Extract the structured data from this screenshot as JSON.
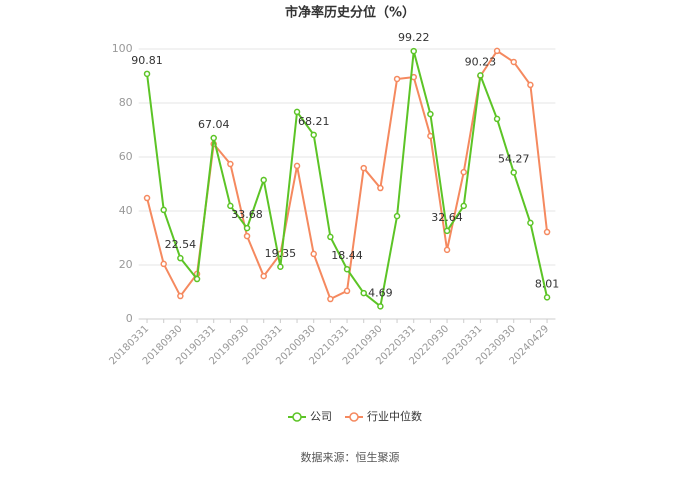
{
  "chart_data": {
    "type": "line",
    "title": "市净率历史分位（%）",
    "categories": [
      "20180331",
      null,
      "20180930",
      null,
      "20190331",
      null,
      "20190930",
      null,
      "20200331",
      null,
      "20200930",
      null,
      "20210331",
      null,
      "20210930",
      null,
      "20220331",
      null,
      "20220930",
      null,
      "20230331",
      null,
      "20230930",
      null,
      "20240429"
    ],
    "series": [
      {
        "name": "公司",
        "color": "#5cc426",
        "values": [
          90.81,
          40.4,
          22.54,
          14.8,
          67.04,
          41.9,
          33.68,
          51.5,
          19.35,
          76.7,
          68.21,
          30.4,
          18.44,
          9.6,
          4.69,
          38.1,
          99.22,
          75.9,
          32.64,
          41.9,
          90.23,
          74.1,
          54.27,
          35.6,
          8.01
        ]
      },
      {
        "name": "行业中位数",
        "color": "#f5895f",
        "values": [
          44.8,
          20.4,
          8.5,
          16.7,
          64.8,
          57.4,
          30.7,
          15.9,
          24.1,
          56.7,
          24.1,
          7.4,
          10.4,
          55.9,
          48.5,
          88.9,
          89.6,
          67.8,
          25.6,
          54.4,
          90.0,
          99.3,
          95.2,
          86.7,
          32.2
        ]
      }
    ],
    "ylim": [
      0,
      100
    ],
    "yticks": [
      0,
      20,
      40,
      60,
      80,
      100
    ],
    "grid": true,
    "source": "数据来源：恒生聚源"
  }
}
